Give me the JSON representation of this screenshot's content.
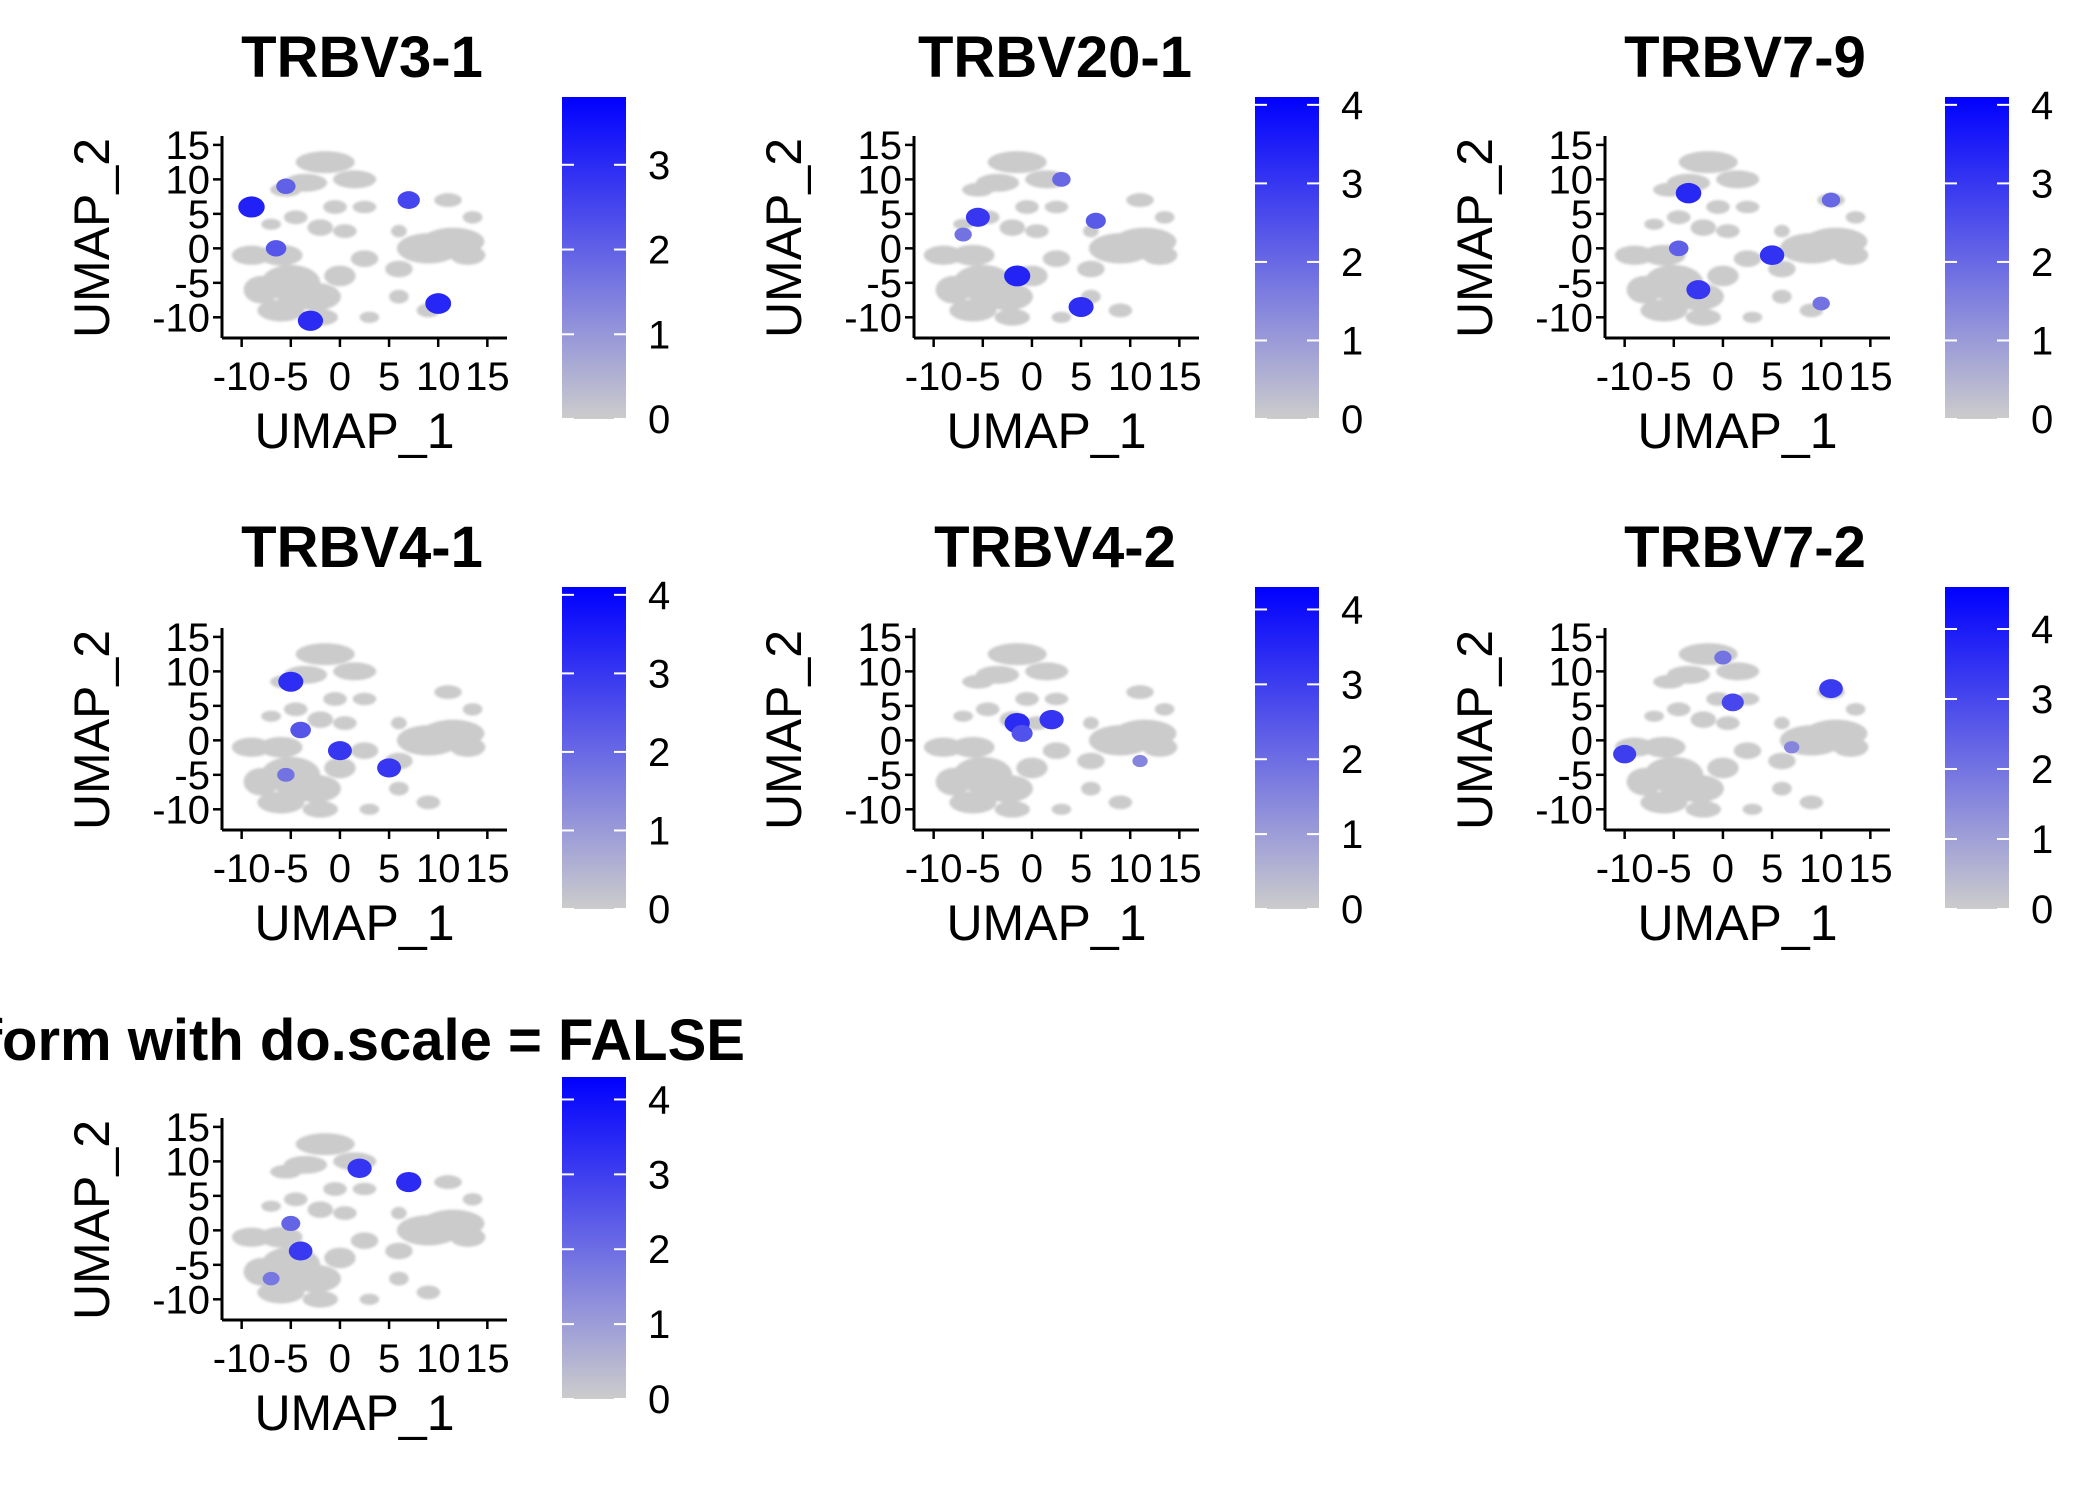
{
  "chart_data": [
    {
      "type": "scatter",
      "title": "TRBV3-1",
      "xlabel": "UMAP_1",
      "ylabel": "UMAP_2",
      "x_ticks": [
        -10,
        -5,
        0,
        5,
        10,
        15
      ],
      "y_ticks": [
        -10,
        -5,
        0,
        5,
        10,
        15
      ],
      "xlim": [
        -12,
        17
      ],
      "ylim": [
        -13,
        16
      ],
      "legend": {
        "placement": "right",
        "ticks": [
          0,
          1,
          2,
          3
        ],
        "min": 0,
        "max": 3.8,
        "low_color": "#cccccc",
        "high_color": "#0000ff"
      },
      "highlights": [
        {
          "x": -9,
          "y": 6,
          "value": 3.2
        },
        {
          "x": -3,
          "y": -10.5,
          "value": 3.0
        },
        {
          "x": 10,
          "y": -8,
          "value": 3.1
        },
        {
          "x": 7,
          "y": 7,
          "value": 2.5
        },
        {
          "x": -6.5,
          "y": 0,
          "value": 2.2
        },
        {
          "x": -5.5,
          "y": 9,
          "value": 2.0
        }
      ]
    },
    {
      "type": "scatter",
      "title": "TRBV20-1",
      "xlabel": "UMAP_1",
      "ylabel": "UMAP_2",
      "x_ticks": [
        -10,
        -5,
        0,
        5,
        10,
        15
      ],
      "y_ticks": [
        -10,
        -5,
        0,
        5,
        10,
        15
      ],
      "xlim": [
        -12,
        17
      ],
      "ylim": [
        -13,
        16
      ],
      "legend": {
        "placement": "right",
        "ticks": [
          0,
          1,
          2,
          3,
          4
        ],
        "min": 0,
        "max": 4.1,
        "low_color": "#cccccc",
        "high_color": "#0000ff"
      },
      "highlights": [
        {
          "x": -1.5,
          "y": -4,
          "value": 3.4
        },
        {
          "x": 5,
          "y": -8.5,
          "value": 3.2
        },
        {
          "x": -5.5,
          "y": 4.5,
          "value": 3.0
        },
        {
          "x": 6.5,
          "y": 4,
          "value": 2.3
        },
        {
          "x": 3,
          "y": 10,
          "value": 2.0
        },
        {
          "x": -7,
          "y": 2,
          "value": 1.8
        }
      ]
    },
    {
      "type": "scatter",
      "title": "TRBV7-9",
      "xlabel": "UMAP_1",
      "ylabel": "UMAP_2",
      "x_ticks": [
        -10,
        -5,
        0,
        5,
        10,
        15
      ],
      "y_ticks": [
        -10,
        -5,
        0,
        5,
        10,
        15
      ],
      "xlim": [
        -12,
        17
      ],
      "ylim": [
        -13,
        16
      ],
      "legend": {
        "placement": "right",
        "ticks": [
          0,
          1,
          2,
          3,
          4
        ],
        "min": 0,
        "max": 4.1,
        "low_color": "#cccccc",
        "high_color": "#0000ff"
      },
      "highlights": [
        {
          "x": -3.5,
          "y": 8,
          "value": 3.3
        },
        {
          "x": 5,
          "y": -1,
          "value": 3.1
        },
        {
          "x": -2.5,
          "y": -6,
          "value": 3.0
        },
        {
          "x": -4.5,
          "y": 0,
          "value": 2.2
        },
        {
          "x": 11,
          "y": 7,
          "value": 2.0
        },
        {
          "x": 10,
          "y": -8,
          "value": 1.8
        }
      ]
    },
    {
      "type": "scatter",
      "title": "TRBV4-1",
      "xlabel": "UMAP_1",
      "ylabel": "UMAP_2",
      "x_ticks": [
        -10,
        -5,
        0,
        5,
        10,
        15
      ],
      "y_ticks": [
        -10,
        -5,
        0,
        5,
        10,
        15
      ],
      "xlim": [
        -12,
        17
      ],
      "ylim": [
        -13,
        16
      ],
      "legend": {
        "placement": "right",
        "ticks": [
          0,
          1,
          2,
          3,
          4
        ],
        "min": 0,
        "max": 4.1,
        "low_color": "#cccccc",
        "high_color": "#0000ff"
      },
      "highlights": [
        {
          "x": -5,
          "y": 8.5,
          "value": 3.2
        },
        {
          "x": 0,
          "y": -1.5,
          "value": 3.0
        },
        {
          "x": 5,
          "y": -4,
          "value": 3.0
        },
        {
          "x": -4,
          "y": 1.5,
          "value": 2.4
        },
        {
          "x": -5.5,
          "y": -5,
          "value": 1.8
        }
      ]
    },
    {
      "type": "scatter",
      "title": "TRBV4-2",
      "xlabel": "UMAP_1",
      "ylabel": "UMAP_2",
      "x_ticks": [
        -10,
        -5,
        0,
        5,
        10,
        15
      ],
      "y_ticks": [
        -10,
        -5,
        0,
        5,
        10,
        15
      ],
      "xlim": [
        -12,
        17
      ],
      "ylim": [
        -13,
        16
      ],
      "legend": {
        "placement": "right",
        "ticks": [
          0,
          1,
          2,
          3,
          4
        ],
        "min": 0,
        "max": 4.3,
        "low_color": "#cccccc",
        "high_color": "#0000ff"
      },
      "highlights": [
        {
          "x": -1.5,
          "y": 2.5,
          "value": 3.4
        },
        {
          "x": 2,
          "y": 3,
          "value": 3.2
        },
        {
          "x": -1,
          "y": 1,
          "value": 2.6
        },
        {
          "x": 11,
          "y": -3,
          "value": 1.5
        }
      ]
    },
    {
      "type": "scatter",
      "title": "TRBV7-2",
      "xlabel": "UMAP_1",
      "ylabel": "UMAP_2",
      "x_ticks": [
        -10,
        -5,
        0,
        5,
        10,
        15
      ],
      "y_ticks": [
        -10,
        -5,
        0,
        5,
        10,
        15
      ],
      "xlim": [
        -12,
        17
      ],
      "ylim": [
        -13,
        16
      ],
      "legend": {
        "placement": "right",
        "ticks": [
          0,
          1,
          2,
          3,
          4
        ],
        "min": 0,
        "max": 4.6,
        "low_color": "#cccccc",
        "high_color": "#0000ff"
      },
      "highlights": [
        {
          "x": -10,
          "y": -2,
          "value": 3.2
        },
        {
          "x": 11,
          "y": 7.5,
          "value": 3.3
        },
        {
          "x": 1,
          "y": 5.5,
          "value": 3.0
        },
        {
          "x": 0,
          "y": 12,
          "value": 2.0
        },
        {
          "x": 7,
          "y": -1,
          "value": 1.6
        }
      ]
    },
    {
      "type": "scatter",
      "title": "nsform with do.scale = FALSE",
      "xlabel": "UMAP_1",
      "ylabel": "UMAP_2",
      "x_ticks": [
        -10,
        -5,
        0,
        5,
        10,
        15
      ],
      "y_ticks": [
        -10,
        -5,
        0,
        5,
        10,
        15
      ],
      "xlim": [
        -12,
        17
      ],
      "ylim": [
        -13,
        16
      ],
      "legend": {
        "placement": "right",
        "ticks": [
          0,
          1,
          2,
          3,
          4
        ],
        "min": 0,
        "max": 4.3,
        "low_color": "#cccccc",
        "high_color": "#0000ff"
      },
      "highlights": [
        {
          "x": 2,
          "y": 9,
          "value": 3.2
        },
        {
          "x": 7,
          "y": 7,
          "value": 3.4
        },
        {
          "x": -4,
          "y": -3,
          "value": 3.1
        },
        {
          "x": -5,
          "y": 1,
          "value": 2.2
        },
        {
          "x": -7,
          "y": -7,
          "value": 1.8
        }
      ]
    }
  ]
}
